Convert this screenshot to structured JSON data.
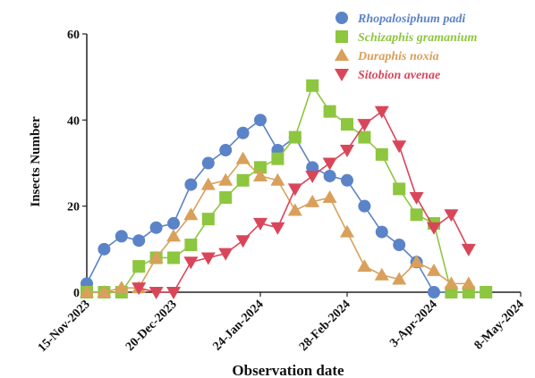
{
  "chart_data": {
    "type": "line",
    "title": "",
    "xlabel": "Observation date",
    "ylabel": "Insects Number",
    "ylim": [
      0,
      60
    ],
    "yticks": [
      0,
      20,
      40,
      60
    ],
    "xlim": [
      "2023-11-15",
      "2024-05-08"
    ],
    "xticks": [
      "15-Nov-2023",
      "20-Dec-2023",
      "24-Jan-2024",
      "28-Feb-2024",
      "3-Apr-2024",
      "8-May-2024"
    ],
    "legend_position": "top-right",
    "series": [
      {
        "name": "Rhopalosiphum padi",
        "color": "#5b83c8",
        "marker": "circle",
        "x": [
          "2023-11-15",
          "2023-11-22",
          "2023-11-29",
          "2023-12-06",
          "2023-12-13",
          "2023-12-20",
          "2023-12-27",
          "2024-01-03",
          "2024-01-10",
          "2024-01-17",
          "2024-01-24",
          "2024-01-31",
          "2024-02-07",
          "2024-02-14",
          "2024-02-21",
          "2024-02-28",
          "2024-03-06",
          "2024-03-13",
          "2024-03-20",
          "2024-03-27",
          "2024-04-03",
          "2024-04-10",
          "2024-04-17",
          "2024-04-24"
        ],
        "y": [
          2,
          10,
          13,
          12,
          15,
          16,
          25,
          30,
          33,
          37,
          40,
          33,
          36,
          29,
          27,
          26,
          20,
          14,
          11,
          7,
          0,
          0,
          0,
          0
        ]
      },
      {
        "name": "Schizaphis gramanium",
        "color": "#8dc63f",
        "marker": "square",
        "x": [
          "2023-11-15",
          "2023-11-22",
          "2023-11-29",
          "2023-12-06",
          "2023-12-13",
          "2023-12-20",
          "2023-12-27",
          "2024-01-03",
          "2024-01-10",
          "2024-01-17",
          "2024-01-24",
          "2024-01-31",
          "2024-02-07",
          "2024-02-14",
          "2024-02-21",
          "2024-02-28",
          "2024-03-06",
          "2024-03-13",
          "2024-03-20",
          "2024-03-27",
          "2024-04-03",
          "2024-04-10",
          "2024-04-17",
          "2024-04-24"
        ],
        "y": [
          0,
          0,
          0,
          6,
          8,
          8,
          11,
          17,
          22,
          26,
          29,
          31,
          36,
          48,
          42,
          39,
          36,
          32,
          24,
          18,
          16,
          0,
          0,
          0
        ]
      },
      {
        "name": "Duraphis noxia",
        "color": "#d9a05b",
        "marker": "triangle-up",
        "x": [
          "2023-11-15",
          "2023-11-22",
          "2023-11-29",
          "2023-12-06",
          "2023-12-13",
          "2023-12-20",
          "2023-12-27",
          "2024-01-03",
          "2024-01-10",
          "2024-01-17",
          "2024-01-24",
          "2024-01-31",
          "2024-02-07",
          "2024-02-14",
          "2024-02-21",
          "2024-02-28",
          "2024-03-06",
          "2024-03-13",
          "2024-03-20",
          "2024-03-27",
          "2024-04-03",
          "2024-04-10",
          "2024-04-17"
        ],
        "y": [
          0,
          0,
          1,
          1,
          8,
          13,
          18,
          25,
          26,
          31,
          27,
          26,
          19,
          21,
          22,
          14,
          6,
          4,
          3,
          7,
          5,
          2,
          2
        ]
      },
      {
        "name": "Sitobion avenae",
        "color": "#d9465a",
        "marker": "triangle-down",
        "x": [
          "2023-12-06",
          "2023-12-13",
          "2023-12-20",
          "2023-12-27",
          "2024-01-03",
          "2024-01-10",
          "2024-01-17",
          "2024-01-24",
          "2024-01-31",
          "2024-02-07",
          "2024-02-14",
          "2024-02-21",
          "2024-02-28",
          "2024-03-06",
          "2024-03-13",
          "2024-03-20",
          "2024-03-27",
          "2024-04-03",
          "2024-04-10",
          "2024-04-17"
        ],
        "y": [
          1,
          0,
          0,
          7,
          8,
          9,
          12,
          16,
          15,
          24,
          27,
          30,
          33,
          39,
          42,
          34,
          22,
          15,
          18,
          10
        ]
      }
    ]
  }
}
